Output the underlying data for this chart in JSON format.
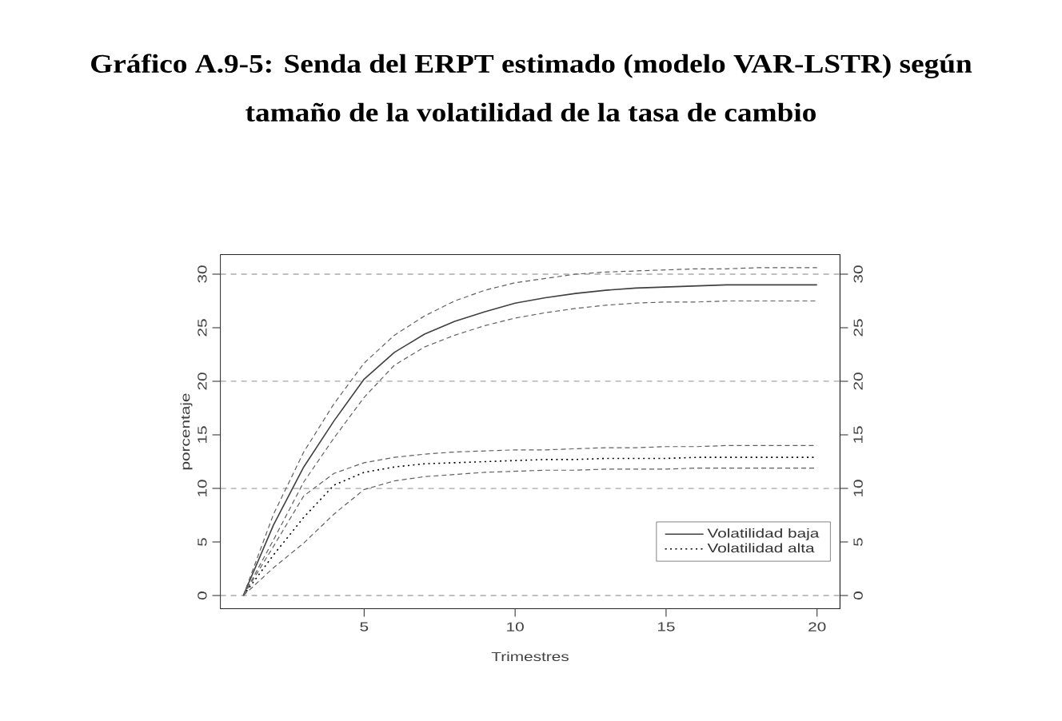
{
  "chart_data": {
    "type": "line",
    "title": "Gráfico A.9-5: Senda del ERPT estimado (modelo VAR-LSTR) según tamaño de la volatilidad de la tasa de cambio",
    "xlabel": "Trimestres",
    "ylabel": "porcentaje",
    "x": [
      1,
      2,
      3,
      4,
      5,
      6,
      7,
      8,
      9,
      10,
      11,
      12,
      13,
      14,
      15,
      16,
      17,
      18,
      19,
      20
    ],
    "xlim": [
      0.24,
      20.76
    ],
    "xticks": [
      5,
      10,
      15,
      20
    ],
    "ylim": [
      -1.22,
      31.82
    ],
    "yticks": [
      0,
      5,
      10,
      15,
      20,
      25,
      30
    ],
    "y2lim": [
      -1.22,
      31.82
    ],
    "y2ticks": [
      0,
      5,
      10,
      15,
      20,
      25,
      30
    ],
    "legend": "bottom right",
    "marker": "none",
    "ref_lines": [
      {
        "axis": "y",
        "value": 0,
        "line_style": "dashed",
        "color": "#808080"
      },
      {
        "axis": "y",
        "value": 10,
        "line_style": "dashed",
        "color": "#808080"
      },
      {
        "axis": "y",
        "value": 20,
        "line_style": "dashed",
        "color": "#808080"
      },
      {
        "axis": "y",
        "value": 30,
        "line_style": "dashed",
        "color": "#808080"
      }
    ],
    "series": [
      {
        "name": "Volatilidad baja",
        "color": "#404040",
        "line_style": "solid",
        "values": [
          0,
          6.6,
          12.0,
          16.3,
          20.2,
          22.7,
          24.4,
          25.6,
          26.5,
          27.3,
          27.8,
          28.2,
          28.5,
          28.7,
          28.8,
          28.9,
          29.0,
          29.0,
          29.0,
          29.0
        ]
      },
      {
        "color": "#606060",
        "line_style": "dashed",
        "values": [
          0,
          7.6,
          13.4,
          17.9,
          21.7,
          24.3,
          26.1,
          27.5,
          28.5,
          29.2,
          29.6,
          30.0,
          30.2,
          30.3,
          30.4,
          30.5,
          30.5,
          30.6,
          30.6,
          30.6
        ]
      },
      {
        "color": "#606060",
        "line_style": "dashed",
        "values": [
          0,
          5.2,
          10.6,
          14.7,
          18.5,
          21.5,
          23.2,
          24.3,
          25.2,
          25.9,
          26.4,
          26.8,
          27.1,
          27.3,
          27.4,
          27.4,
          27.5,
          27.5,
          27.5,
          27.5
        ]
      },
      {
        "name": "Volatilidad alta",
        "color": "#000000",
        "line_style": "dotted",
        "values": [
          0,
          3.8,
          7.3,
          10.3,
          11.5,
          12.0,
          12.3,
          12.4,
          12.5,
          12.6,
          12.7,
          12.7,
          12.8,
          12.8,
          12.8,
          12.9,
          12.9,
          12.9,
          12.9,
          12.9
        ]
      },
      {
        "color": "#606060",
        "line_style": "dashed",
        "values": [
          0,
          4.6,
          9.3,
          11.4,
          12.4,
          12.9,
          13.2,
          13.4,
          13.5,
          13.6,
          13.6,
          13.7,
          13.8,
          13.8,
          13.9,
          13.9,
          14.0,
          14.0,
          14.0,
          14.0
        ]
      },
      {
        "color": "#606060",
        "line_style": "dashed",
        "values": [
          0,
          2.6,
          4.9,
          7.6,
          9.9,
          10.7,
          11.1,
          11.3,
          11.5,
          11.6,
          11.7,
          11.7,
          11.8,
          11.8,
          11.8,
          11.9,
          11.9,
          11.9,
          11.9,
          11.9
        ]
      }
    ]
  }
}
